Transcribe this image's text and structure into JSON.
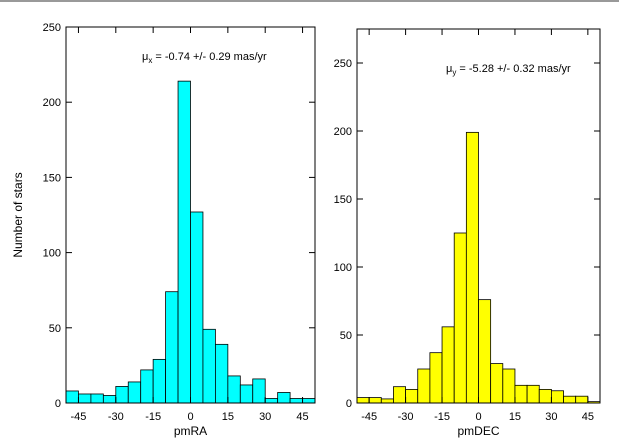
{
  "chart_data": [
    {
      "type": "bar",
      "color": "#00ffff",
      "title": "",
      "xlabel": "pmRA",
      "ylabel": "Number of stars",
      "annotation": {
        "symbol": "μ",
        "sub": "x",
        "text": " = -0.74 +/- 0.29 mas/yr"
      },
      "xlim": [
        -50,
        50
      ],
      "ylim": [
        0,
        250
      ],
      "xticks": [
        -45,
        -30,
        -15,
        0,
        15,
        30,
        45
      ],
      "yticks": [
        0,
        50,
        100,
        150,
        200,
        250
      ],
      "bin_width": 5,
      "bins": [
        {
          "x": -47.5,
          "y": 8
        },
        {
          "x": -42.5,
          "y": 6
        },
        {
          "x": -37.5,
          "y": 6
        },
        {
          "x": -32.5,
          "y": 5
        },
        {
          "x": -27.5,
          "y": 11
        },
        {
          "x": -22.5,
          "y": 14
        },
        {
          "x": -17.5,
          "y": 22
        },
        {
          "x": -12.5,
          "y": 29
        },
        {
          "x": -7.5,
          "y": 74
        },
        {
          "x": -2.5,
          "y": 214
        },
        {
          "x": 2.5,
          "y": 127
        },
        {
          "x": 7.5,
          "y": 49
        },
        {
          "x": 12.5,
          "y": 39
        },
        {
          "x": 17.5,
          "y": 18
        },
        {
          "x": 22.5,
          "y": 12
        },
        {
          "x": 27.5,
          "y": 16
        },
        {
          "x": 32.5,
          "y": 3
        },
        {
          "x": 37.5,
          "y": 7
        },
        {
          "x": 42.5,
          "y": 3
        },
        {
          "x": 47.5,
          "y": 3
        }
      ]
    },
    {
      "type": "bar",
      "color": "#ffff00",
      "title": "",
      "xlabel": "pmDEC",
      "ylabel": "",
      "annotation": {
        "symbol": "μ",
        "sub": "y",
        "text": " = -5.28 +/- 0.32 mas/yr"
      },
      "xlim": [
        -50,
        50
      ],
      "ylim": [
        0,
        275
      ],
      "xticks": [
        -45,
        -30,
        -15,
        0,
        15,
        30,
        45
      ],
      "yticks": [
        0,
        50,
        100,
        150,
        200,
        250
      ],
      "bin_width": 5,
      "bins": [
        {
          "x": -47.5,
          "y": 4
        },
        {
          "x": -42.5,
          "y": 4
        },
        {
          "x": -37.5,
          "y": 3
        },
        {
          "x": -32.5,
          "y": 12
        },
        {
          "x": -27.5,
          "y": 10
        },
        {
          "x": -22.5,
          "y": 25
        },
        {
          "x": -17.5,
          "y": 37
        },
        {
          "x": -12.5,
          "y": 56
        },
        {
          "x": -7.5,
          "y": 125
        },
        {
          "x": -2.5,
          "y": 199
        },
        {
          "x": 2.5,
          "y": 76
        },
        {
          "x": 7.5,
          "y": 29
        },
        {
          "x": 12.5,
          "y": 25
        },
        {
          "x": 17.5,
          "y": 13
        },
        {
          "x": 22.5,
          "y": 13
        },
        {
          "x": 27.5,
          "y": 10
        },
        {
          "x": 32.5,
          "y": 9
        },
        {
          "x": 37.5,
          "y": 5
        },
        {
          "x": 42.5,
          "y": 5
        },
        {
          "x": 47.5,
          "y": 1
        }
      ]
    }
  ]
}
